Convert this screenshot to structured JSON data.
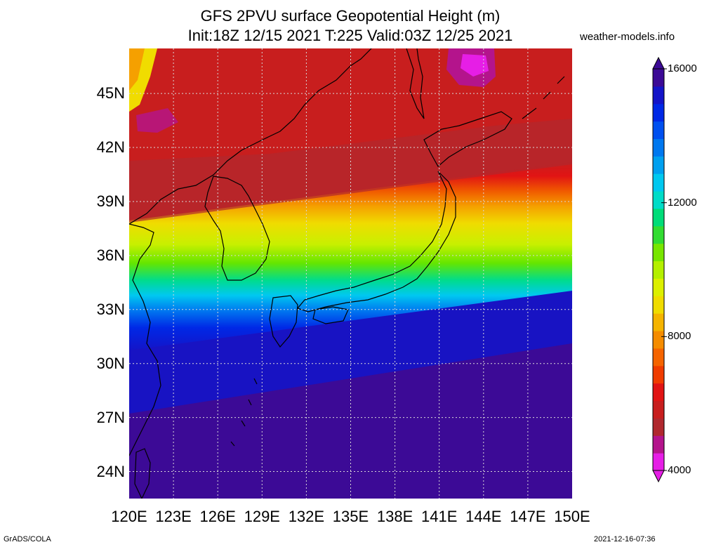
{
  "title": {
    "line1": "GFS 2PVU surface Geopotential Height (m)",
    "line2": "Init:18Z 12/15 2021 T:225 Valid:03Z 12/25 2021"
  },
  "site": "weather-models.info",
  "lat_ticks": [
    "45N",
    "42N",
    "39N",
    "36N",
    "33N",
    "30N",
    "27N",
    "24N"
  ],
  "lat_values": [
    45,
    42,
    39,
    36,
    33,
    30,
    27,
    24
  ],
  "lon_ticks": [
    "120E",
    "123E",
    "126E",
    "129E",
    "132E",
    "135E",
    "138E",
    "141E",
    "144E",
    "147E",
    "150E"
  ],
  "lon_values": [
    120,
    123,
    126,
    129,
    132,
    135,
    138,
    141,
    144,
    147,
    150
  ],
  "map_extent": {
    "lon": [
      120,
      150
    ],
    "lat": [
      22.5,
      47.5
    ]
  },
  "colorbar": {
    "labels": [
      "16000",
      "12000",
      "8000",
      "4000"
    ],
    "label_values": [
      16000,
      12000,
      8000,
      4000
    ],
    "range": [
      4000,
      16000
    ],
    "colors": [
      "#e61ee6",
      "#b4148c",
      "#b0282e",
      "#c81e1e",
      "#e11414",
      "#f03c00",
      "#f56400",
      "#f58c00",
      "#f5b400",
      "#f0dc00",
      "#dcf000",
      "#b4f000",
      "#78e600",
      "#32dc32",
      "#00dc78",
      "#00dcc8",
      "#00c8f0",
      "#00a0f0",
      "#0078f0",
      "#0050f0",
      "#0028e6",
      "#1414c8",
      "#3c0a96"
    ]
  },
  "footer": {
    "left": "GrADS/COLA",
    "right": "2021-12-16-07:36"
  }
}
